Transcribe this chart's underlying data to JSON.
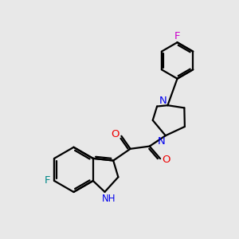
{
  "bg_color": "#e8e8e8",
  "bond_color": "#000000",
  "N_color": "#0000ee",
  "O_color": "#ee0000",
  "F_indole_color": "#008888",
  "F_phenyl_color": "#cc00cc",
  "lw": 1.6,
  "figsize": [
    3.0,
    3.0
  ],
  "dpi": 100,
  "xlim": [
    0,
    10
  ],
  "ylim": [
    0,
    11
  ]
}
